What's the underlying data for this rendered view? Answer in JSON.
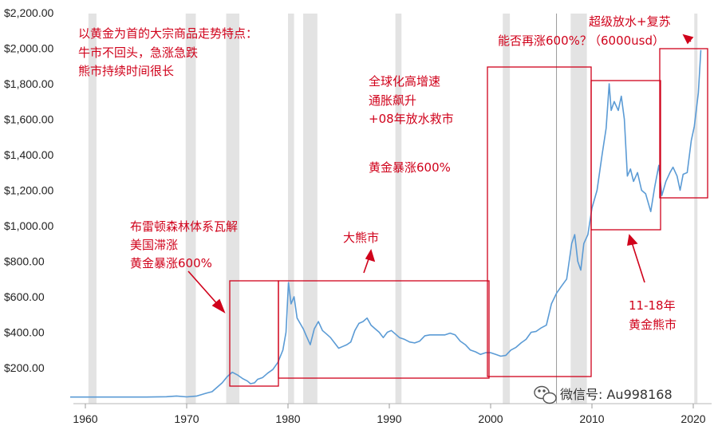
{
  "chart_data": {
    "type": "line",
    "x_range": [
      1958.5,
      2022.5
    ],
    "ylim": [
      0,
      2200
    ],
    "y_ticks": [
      {
        "value": 200,
        "label": "$200.00"
      },
      {
        "value": 400,
        "label": "$400.00"
      },
      {
        "value": 600,
        "label": "$600.00"
      },
      {
        "value": 800,
        "label": "$800.00"
      },
      {
        "value": 1000,
        "label": "$1,000.00"
      },
      {
        "value": 1200,
        "label": "$1,200.00"
      },
      {
        "value": 1400,
        "label": "$1,400.00"
      },
      {
        "value": 1600,
        "label": "$1,600.00"
      },
      {
        "value": 1800,
        "label": "$1,800.00"
      },
      {
        "value": 2000,
        "label": "$2,000.00"
      },
      {
        "value": 2200,
        "label": "$2,200.00"
      }
    ],
    "x_ticks": [
      {
        "value": 1960,
        "label": "1960"
      },
      {
        "value": 1970,
        "label": "1970"
      },
      {
        "value": 1980,
        "label": "1980"
      },
      {
        "value": 1990,
        "label": "1990"
      },
      {
        "value": 2000,
        "label": "2000"
      },
      {
        "value": 2010,
        "label": "2010"
      },
      {
        "value": 2020,
        "label": "2020"
      }
    ],
    "recessions": [
      [
        1960.3,
        1961.1
      ],
      [
        1969.9,
        1970.9
      ],
      [
        1973.9,
        1975.2
      ],
      [
        1980.0,
        1980.6
      ],
      [
        1981.5,
        1982.9
      ],
      [
        1990.6,
        1991.2
      ],
      [
        2001.2,
        2001.9
      ],
      [
        2007.9,
        2009.5
      ],
      [
        2020.1,
        2020.4
      ]
    ],
    "vertical_marker": 2006.5,
    "line_color": "#5b9bd5",
    "series": [
      {
        "points": [
          [
            1958.5,
            35
          ],
          [
            1960,
            35
          ],
          [
            1962,
            35
          ],
          [
            1964,
            35
          ],
          [
            1966,
            35
          ],
          [
            1968,
            37
          ],
          [
            1969,
            41
          ],
          [
            1970,
            36
          ],
          [
            1971,
            41
          ],
          [
            1972,
            58
          ],
          [
            1972.5,
            65
          ],
          [
            1973,
            90
          ],
          [
            1973.5,
            115
          ],
          [
            1974,
            150
          ],
          [
            1974.5,
            175
          ],
          [
            1975,
            160
          ],
          [
            1975.5,
            140
          ],
          [
            1976,
            125
          ],
          [
            1976.3,
            110
          ],
          [
            1976.7,
            115
          ],
          [
            1977,
            135
          ],
          [
            1977.5,
            145
          ],
          [
            1978,
            170
          ],
          [
            1978.5,
            190
          ],
          [
            1979,
            230
          ],
          [
            1979.5,
            300
          ],
          [
            1979.8,
            400
          ],
          [
            1980.05,
            680
          ],
          [
            1980.3,
            560
          ],
          [
            1980.6,
            600
          ],
          [
            1980.9,
            480
          ],
          [
            1981.2,
            450
          ],
          [
            1981.5,
            420
          ],
          [
            1981.8,
            380
          ],
          [
            1982.2,
            330
          ],
          [
            1982.6,
            420
          ],
          [
            1983,
            460
          ],
          [
            1983.4,
            410
          ],
          [
            1983.8,
            390
          ],
          [
            1984.2,
            370
          ],
          [
            1984.6,
            340
          ],
          [
            1985,
            310
          ],
          [
            1985.4,
            320
          ],
          [
            1985.8,
            330
          ],
          [
            1986.2,
            345
          ],
          [
            1986.6,
            410
          ],
          [
            1987,
            450
          ],
          [
            1987.4,
            460
          ],
          [
            1987.8,
            480
          ],
          [
            1988.2,
            440
          ],
          [
            1988.6,
            420
          ],
          [
            1989,
            400
          ],
          [
            1989.4,
            370
          ],
          [
            1989.8,
            400
          ],
          [
            1990.2,
            410
          ],
          [
            1990.6,
            390
          ],
          [
            1991,
            370
          ],
          [
            1991.5,
            360
          ],
          [
            1992,
            345
          ],
          [
            1992.5,
            340
          ],
          [
            1993,
            350
          ],
          [
            1993.5,
            380
          ],
          [
            1994,
            385
          ],
          [
            1994.5,
            385
          ],
          [
            1995,
            385
          ],
          [
            1995.5,
            385
          ],
          [
            1996,
            395
          ],
          [
            1996.5,
            385
          ],
          [
            1997,
            350
          ],
          [
            1997.5,
            330
          ],
          [
            1998,
            300
          ],
          [
            1998.5,
            290
          ],
          [
            1999,
            275
          ],
          [
            1999.5,
            285
          ],
          [
            2000,
            285
          ],
          [
            2000.5,
            275
          ],
          [
            2001,
            265
          ],
          [
            2001.5,
            270
          ],
          [
            2002,
            300
          ],
          [
            2002.5,
            315
          ],
          [
            2003,
            340
          ],
          [
            2003.5,
            360
          ],
          [
            2004,
            400
          ],
          [
            2004.5,
            405
          ],
          [
            2005,
            425
          ],
          [
            2005.5,
            440
          ],
          [
            2006,
            560
          ],
          [
            2006.5,
            620
          ],
          [
            2007,
            660
          ],
          [
            2007.5,
            700
          ],
          [
            2008,
            900
          ],
          [
            2008.3,
            950
          ],
          [
            2008.6,
            800
          ],
          [
            2008.9,
            750
          ],
          [
            2009.2,
            900
          ],
          [
            2009.6,
            950
          ],
          [
            2010,
            1100
          ],
          [
            2010.5,
            1200
          ],
          [
            2011,
            1400
          ],
          [
            2011.4,
            1550
          ],
          [
            2011.7,
            1800
          ],
          [
            2011.9,
            1650
          ],
          [
            2012.2,
            1700
          ],
          [
            2012.6,
            1650
          ],
          [
            2012.9,
            1730
          ],
          [
            2013.2,
            1600
          ],
          [
            2013.5,
            1280
          ],
          [
            2013.8,
            1320
          ],
          [
            2014.1,
            1250
          ],
          [
            2014.5,
            1300
          ],
          [
            2014.9,
            1200
          ],
          [
            2015.3,
            1180
          ],
          [
            2015.8,
            1080
          ],
          [
            2016.2,
            1220
          ],
          [
            2016.6,
            1340
          ],
          [
            2016.9,
            1170
          ],
          [
            2017.3,
            1250
          ],
          [
            2017.7,
            1300
          ],
          [
            2018,
            1330
          ],
          [
            2018.4,
            1280
          ],
          [
            2018.7,
            1200
          ],
          [
            2019,
            1290
          ],
          [
            2019.4,
            1300
          ],
          [
            2019.8,
            1480
          ],
          [
            2020.1,
            1560
          ],
          [
            2020.5,
            1750
          ],
          [
            2020.75,
            1990
          ]
        ]
      }
    ]
  },
  "annotations": {
    "top_left": [
      "以黄金为首的大宗商品走势特点：",
      "牛市不回头，急涨急跌",
      "熊市持续时间很长"
    ],
    "bretton": [
      "布雷顿森林体系瓦解",
      "美国滞涨",
      "黄金暴涨600%"
    ],
    "bear": "大熊市",
    "globalization": [
      "全球化高增速",
      "通胀飙升",
      "+08年放水救市"
    ],
    "gold600": "黄金暴涨600%",
    "again": "能否再涨600%？",
    "super": "超级放水+复苏",
    "target": "（6000usd）",
    "bear1118": [
      "11-18年",
      "黄金熊市"
    ],
    "watermark": "微信号: Au998168"
  },
  "colors": {
    "annotation": "#d0021b",
    "recession": "#e3e3e3",
    "axis": "#b7b7b7"
  }
}
